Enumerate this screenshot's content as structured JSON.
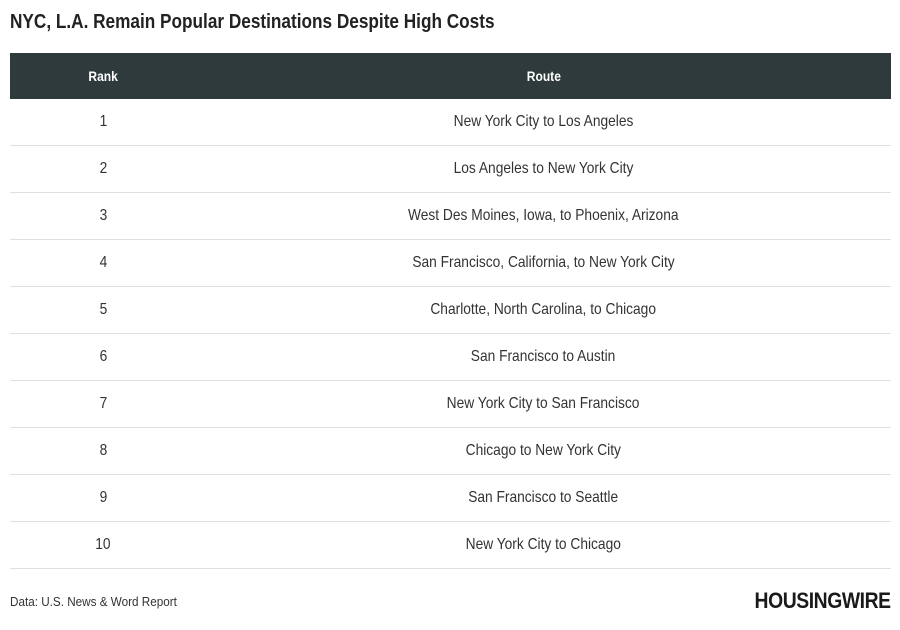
{
  "header": {
    "title": "NYC, L.A. Remain Popular Destinations Despite High Costs"
  },
  "chart_data": {
    "type": "table",
    "columns": [
      "Rank",
      "Route"
    ],
    "rows": [
      {
        "rank": "1",
        "route": "New York City to Los Angeles"
      },
      {
        "rank": "2",
        "route": "Los Angeles to New York City"
      },
      {
        "rank": "3",
        "route": "West Des Moines, Iowa, to Phoenix, Arizona"
      },
      {
        "rank": "4",
        "route": "San Francisco, California, to New York City"
      },
      {
        "rank": "5",
        "route": "Charlotte, North Carolina, to Chicago"
      },
      {
        "rank": "6",
        "route": "San Francisco to Austin"
      },
      {
        "rank": "7",
        "route": "New York City to San Francisco"
      },
      {
        "rank": "8",
        "route": "Chicago to New York City"
      },
      {
        "rank": "9",
        "route": "San Francisco to Seattle"
      },
      {
        "rank": "10",
        "route": "New York City to Chicago"
      }
    ]
  },
  "footer": {
    "source": "Data: U.S. News & Word Report",
    "logo_text": "HOUSINGWIRE"
  },
  "colors": {
    "header_bg": "#2f3a3c",
    "header_text": "#ffffff",
    "row_divider": "#e0e0e0"
  }
}
